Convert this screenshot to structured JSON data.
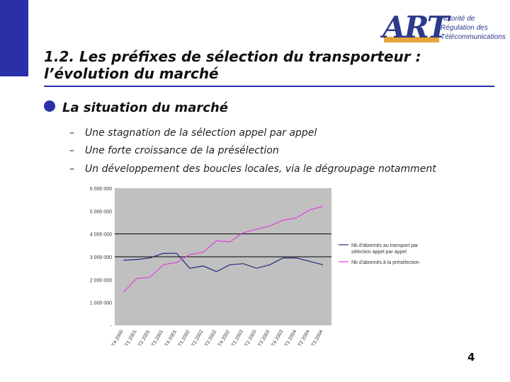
{
  "title": "1.2. Les préfixes de sélection du transporteur : l’évolution du marché",
  "logo": {
    "mark": "ART",
    "lines": [
      "Autorité de",
      "Régulation des",
      "Télécommunications"
    ]
  },
  "bullet": "La situation du marché",
  "subpoints": [
    "Une stagnation de la sélection appel par appel",
    "Une forte croissance de la présélection",
    "Un développement des boucles locales, via le dégroupage notamment"
  ],
  "dash": "–",
  "page_number": "4",
  "colors": {
    "accent": "#2b2fa8",
    "plot_bg": "#c0c0c0",
    "series1": "#1f2a7a",
    "series2": "#e040e0"
  },
  "chart_data": {
    "type": "line",
    "title": "",
    "xlabel": "",
    "ylabel": "",
    "ylim": [
      0,
      6000000
    ],
    "y_ticks": [
      "6 000 000",
      "5 000 000",
      "4 000 000",
      "3 000 000",
      "2 000 000",
      "1 000 000",
      "-"
    ],
    "categories": [
      "T4 2000",
      "T1 2001",
      "T2 2001",
      "T3 2001",
      "T4 2001",
      "T1 2002",
      "T2 2002",
      "T3 2002",
      "T4 2002",
      "T1 2003",
      "T2 2003",
      "T3 2003",
      "T4 2003",
      "T1 2004",
      "T2 2004",
      "T3 2004"
    ],
    "series": [
      {
        "name": "Nb d'abonnés au transport par sélection appel par appel",
        "values": [
          2850000,
          2880000,
          2950000,
          3150000,
          3150000,
          2500000,
          2600000,
          2350000,
          2650000,
          2700000,
          2500000,
          2650000,
          2950000,
          2950000,
          2800000,
          2650000
        ]
      },
      {
        "name": "Nb d'abonnés à la présélection",
        "values": [
          1450000,
          2050000,
          2100000,
          2650000,
          2750000,
          3100000,
          3200000,
          3700000,
          3650000,
          4050000,
          4200000,
          4350000,
          4600000,
          4700000,
          5050000,
          5200000
        ]
      }
    ],
    "legend_position": "right",
    "grid": false,
    "reference_lines": [
      4000000,
      3000000
    ]
  }
}
